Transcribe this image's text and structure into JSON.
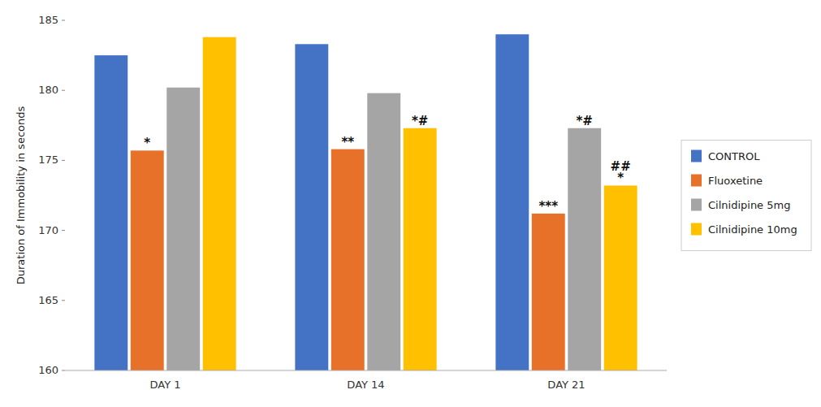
{
  "chart_data": {
    "type": "bar",
    "ylabel": "Duration of Immobility in seconds",
    "categories": [
      "DAY 1",
      "DAY 14",
      "DAY 21"
    ],
    "series": [
      {
        "name": "CONTROL",
        "color": "#4472C4",
        "values": [
          182.5,
          183.3,
          184.0
        ],
        "annotations": [
          null,
          null,
          null
        ]
      },
      {
        "name": "Fluoxetine",
        "color": "#E8712A",
        "values": [
          175.7,
          175.8,
          171.2
        ],
        "annotations": [
          "*",
          "**",
          "***"
        ]
      },
      {
        "name": "Cilnidipine 5mg",
        "color": "#A5A5A5",
        "values": [
          180.2,
          179.8,
          177.3
        ],
        "annotations": [
          null,
          null,
          "*#"
        ]
      },
      {
        "name": "Cilnidipine 10mg",
        "color": "#FFC000",
        "values": [
          183.8,
          177.3,
          173.2
        ],
        "annotations": [
          null,
          "*#",
          [
            "##",
            "*"
          ]
        ]
      }
    ],
    "ylim": [
      160,
      185
    ],
    "yticks": [
      160,
      165,
      170,
      175,
      180,
      185
    ],
    "grid": false,
    "legend": "right"
  }
}
